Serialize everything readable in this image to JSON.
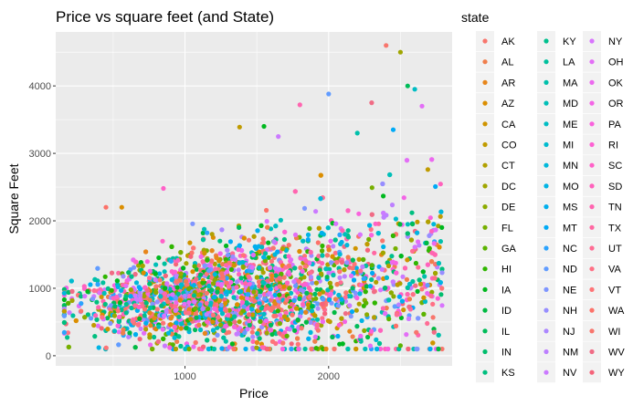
{
  "chart_data": {
    "type": "scatter",
    "title": "Price vs square feet (and State)",
    "xlabel": "Price",
    "ylabel": "Square Feet",
    "xlim": [
      100,
      2860
    ],
    "ylim": [
      -150,
      4800
    ],
    "x_ticks": [
      1000,
      2000
    ],
    "y_ticks": [
      0,
      1000,
      2000,
      3000,
      4000
    ],
    "grid": true,
    "legend": {
      "title": "state",
      "placement": "right",
      "columns": 3,
      "entries": [
        {
          "name": "AK",
          "color": "#F8766D"
        },
        {
          "name": "AL",
          "color": "#F07E4C"
        },
        {
          "name": "AR",
          "color": "#E7861B"
        },
        {
          "name": "AZ",
          "color": "#DB8E00"
        },
        {
          "name": "CA",
          "color": "#CF9400"
        },
        {
          "name": "CO",
          "color": "#C09B00"
        },
        {
          "name": "CT",
          "color": "#B1A000"
        },
        {
          "name": "DC",
          "color": "#A0A600"
        },
        {
          "name": "DE",
          "color": "#8CAB00"
        },
        {
          "name": "FL",
          "color": "#76AF00"
        },
        {
          "name": "GA",
          "color": "#5BB300"
        },
        {
          "name": "HI",
          "color": "#2FB600"
        },
        {
          "name": "IA",
          "color": "#00B81F"
        },
        {
          "name": "ID",
          "color": "#00BA42"
        },
        {
          "name": "IL",
          "color": "#00BC59"
        },
        {
          "name": "IN",
          "color": "#00BD6D"
        },
        {
          "name": "KS",
          "color": "#00BF7F"
        },
        {
          "name": "KY",
          "color": "#00C08E"
        },
        {
          "name": "LA",
          "color": "#00C09D"
        },
        {
          "name": "MA",
          "color": "#00C0AB"
        },
        {
          "name": "MD",
          "color": "#00BFB8"
        },
        {
          "name": "ME",
          "color": "#00BDC4"
        },
        {
          "name": "MI",
          "color": "#00BBCF"
        },
        {
          "name": "MN",
          "color": "#00B8DA"
        },
        {
          "name": "MO",
          "color": "#00B4E4"
        },
        {
          "name": "MS",
          "color": "#00AFED"
        },
        {
          "name": "MT",
          "color": "#00AAF6"
        },
        {
          "name": "NC",
          "color": "#2CA3FE"
        },
        {
          "name": "ND",
          "color": "#619CFF"
        },
        {
          "name": "NE",
          "color": "#7F96FF"
        },
        {
          "name": "NH",
          "color": "#978EFF"
        },
        {
          "name": "NJ",
          "color": "#AC87FF"
        },
        {
          "name": "NM",
          "color": "#BD80FF"
        },
        {
          "name": "NV",
          "color": "#CB7AFF"
        },
        {
          "name": "NY",
          "color": "#D874FD"
        },
        {
          "name": "OH",
          "color": "#E36EF6"
        },
        {
          "name": "OK",
          "color": "#EC69EF"
        },
        {
          "name": "OR",
          "color": "#F365E6"
        },
        {
          "name": "PA",
          "color": "#F962DD"
        },
        {
          "name": "RI",
          "color": "#FD61D3"
        },
        {
          "name": "SC",
          "color": "#FF61C8"
        },
        {
          "name": "SD",
          "color": "#FF62BC"
        },
        {
          "name": "TN",
          "color": "#FF65B0"
        },
        {
          "name": "TX",
          "color": "#FF68A2"
        },
        {
          "name": "UT",
          "color": "#FF6C94"
        },
        {
          "name": "VA",
          "color": "#FF7085"
        },
        {
          "name": "VT",
          "color": "#FE7477"
        },
        {
          "name": "WA",
          "color": "#FC7269"
        },
        {
          "name": "WI",
          "color": "#F8766D"
        },
        {
          "name": "WV",
          "color": "#F06C85"
        },
        {
          "name": "WY",
          "color": "#F5647A"
        }
      ]
    },
    "points_summary": "Dense cloud of thousands of points concentrated roughly at price 500-1700 and square feet 300-1500, fanning out to price ~2800 and square feet up to ~4600.",
    "notable_points": [
      {
        "x": 2400,
        "y": 4600
      },
      {
        "x": 2500,
        "y": 4500
      },
      {
        "x": 2550,
        "y": 4000
      },
      {
        "x": 2600,
        "y": 3950
      },
      {
        "x": 2000,
        "y": 3880
      },
      {
        "x": 2650,
        "y": 3700
      },
      {
        "x": 1800,
        "y": 3720
      },
      {
        "x": 2300,
        "y": 3750
      },
      {
        "x": 1380,
        "y": 3390
      },
      {
        "x": 1550,
        "y": 3400
      },
      {
        "x": 2200,
        "y": 3300
      },
      {
        "x": 2450,
        "y": 3350
      },
      {
        "x": 1650,
        "y": 3250
      },
      {
        "x": 850,
        "y": 2480
      },
      {
        "x": 450,
        "y": 2200
      },
      {
        "x": 560,
        "y": 2200
      },
      {
        "x": 2500,
        "y": 150
      },
      {
        "x": 180,
        "y": 270
      },
      {
        "x": 400,
        "y": 120
      }
    ]
  }
}
